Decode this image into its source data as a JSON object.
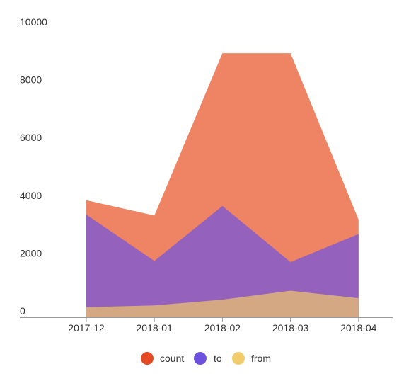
{
  "chart_data": {
    "type": "area",
    "stacked": false,
    "categories": [
      "2017-12",
      "2018-01",
      "2018-02",
      "2018-03",
      "2018-04"
    ],
    "series": [
      {
        "name": "count",
        "values": [
          4050,
          3520,
          9140,
          9140,
          3380
        ],
        "color": "#ef8465"
      },
      {
        "name": "to",
        "values": [
          3550,
          1950,
          3850,
          1910,
          2880
        ],
        "color": "#9461bd"
      },
      {
        "name": "from",
        "values": [
          350,
          410,
          610,
          920,
          660
        ],
        "color": "#d4a882"
      }
    ],
    "legend_swatch_colors": [
      "#e54a24",
      "#6d50dd",
      "#f0cc6c"
    ],
    "ylim": [
      0,
      10000
    ],
    "yticks": [
      0,
      2000,
      4000,
      6000,
      8000,
      10000
    ],
    "grid": false,
    "legend_position": "bottom",
    "title": "",
    "xlabel": "",
    "ylabel": ""
  }
}
